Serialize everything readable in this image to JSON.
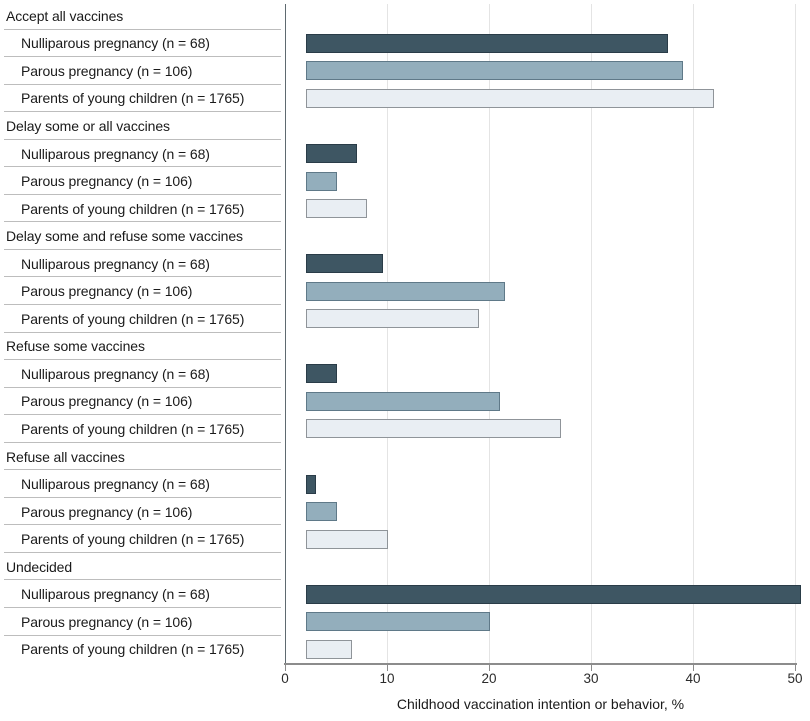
{
  "chart_data": {
    "type": "bar",
    "orientation": "horizontal",
    "title": "",
    "xlabel": "Childhood vaccination intention or behavior, %",
    "ylabel": "",
    "xlim": [
      0,
      50
    ],
    "xticks": [
      0,
      10,
      20,
      30,
      40,
      50
    ],
    "grid": "vertical-light-gray",
    "legend": "none (series labeled per row in left column)",
    "categories": [
      "Accept all vaccines",
      "Delay some or all vaccines",
      "Delay some and refuse some vaccines",
      "Refuse some vaccines",
      "Refuse all vaccines",
      "Undecided"
    ],
    "series": [
      {
        "name": "Nulliparous pregnancy (n = 68)",
        "fill": "#3E5663",
        "border": "#2A3C48",
        "values": [
          35.5,
          5,
          7.5,
          3,
          1,
          48.5
        ]
      },
      {
        "name": "Parous pregnancy (n = 106)",
        "fill": "#93AEBC",
        "border": "#5F7988",
        "values": [
          37,
          3,
          19.5,
          19,
          3,
          18
        ]
      },
      {
        "name": "Parents of young children (n = 1765)",
        "fill": "#E9EEF3",
        "border": "#8F9499",
        "values": [
          40,
          6,
          17,
          25,
          8,
          4.5
        ]
      }
    ]
  },
  "colors": {
    "background": "#ffffff",
    "gridline": "#e4e4e4",
    "row_separator": "#bdbdbd",
    "x_axis": "#8c8c8c",
    "y_axis": "#5f6a70",
    "text": "#1a1a1a"
  }
}
